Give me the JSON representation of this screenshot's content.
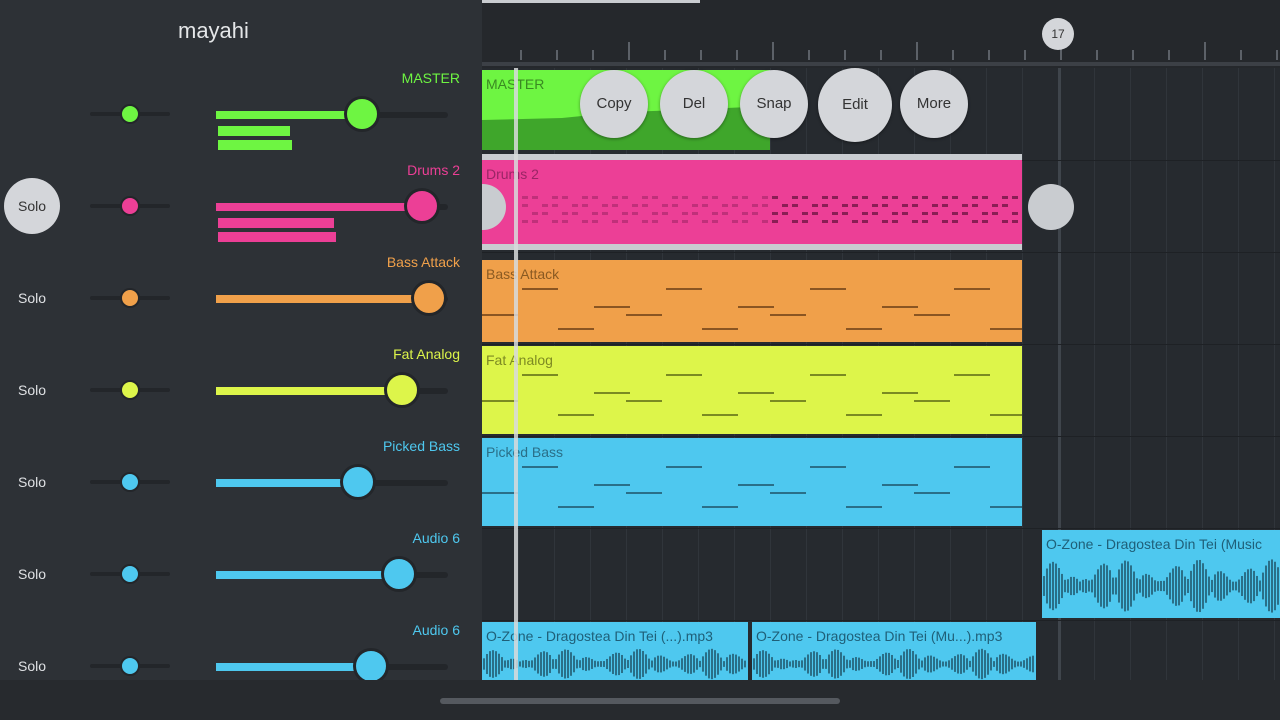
{
  "header": {
    "title": "mayahi"
  },
  "ruler": {
    "bar_marker": "17"
  },
  "context_menu": {
    "copy": "Copy",
    "del": "Del",
    "snap": "Snap",
    "edit": "Edit",
    "more": "More"
  },
  "colors": {
    "master": "#6ef542",
    "drums": "#ec3f96",
    "bass_attack": "#f0a04a",
    "fat_analog": "#ddf54a",
    "picked_bass": "#4ec8ef",
    "audio": "#4ec8ef"
  },
  "tracks": [
    {
      "name": "MASTER",
      "solo": "",
      "volume_percent": 63
    },
    {
      "name": "Drums 2",
      "solo": "Solo",
      "volume_percent": 89
    },
    {
      "name": "Bass Attack",
      "solo": "Solo",
      "volume_percent": 92
    },
    {
      "name": "Fat Analog",
      "solo": "Solo",
      "volume_percent": 80
    },
    {
      "name": "Picked Bass",
      "solo": "Solo",
      "volume_percent": 61
    },
    {
      "name": "Audio 6",
      "solo": "Solo",
      "volume_percent": 79
    },
    {
      "name": "Audio 6",
      "solo": "Solo",
      "volume_percent": 67
    }
  ],
  "clips": {
    "master": "MASTER",
    "drums": "Drums 2",
    "bass_attack": "Bass Attack",
    "fat_analog": "Fat Analog",
    "picked_bass": "Picked Bass",
    "audio_a": "O-Zone - Dragostea Din Tei (Music",
    "audio_b": "O-Zone - Dragostea Din Tei (...).mp3",
    "audio_c": "O-Zone - Dragostea Din Tei (Mu...).mp3"
  }
}
